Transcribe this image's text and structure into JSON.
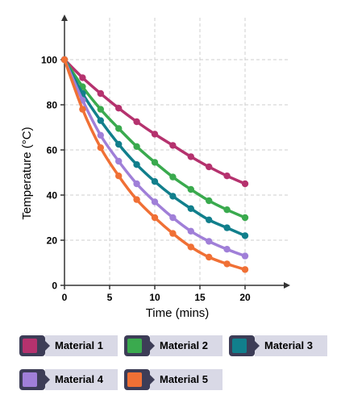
{
  "chart_data": {
    "type": "line",
    "title": "",
    "xlabel": "Time (mins)",
    "ylabel": "Temperature (°C)",
    "xlim": [
      0,
      25
    ],
    "ylim": [
      0,
      100
    ],
    "xticks": [
      0,
      5,
      10,
      15,
      20
    ],
    "yticks": [
      0,
      20,
      40,
      60,
      80,
      100
    ],
    "xtick_labels": [
      "0",
      "5",
      "10",
      "15",
      "20"
    ],
    "ytick_labels": [
      "0",
      "20",
      "40",
      "60",
      "80",
      "100"
    ],
    "grid": true,
    "legend_position": "bottom",
    "x": [
      0,
      2,
      4,
      6,
      8,
      10,
      12,
      14,
      16,
      18,
      20
    ],
    "series": [
      {
        "name": "Material 1",
        "color": "#b5326e",
        "values": [
          100,
          92,
          85,
          78.5,
          72.5,
          67,
          62,
          57,
          52.5,
          48.5,
          45
        ]
      },
      {
        "name": "Material 2",
        "color": "#3aaa4e",
        "values": [
          100,
          88,
          78,
          69.5,
          61.5,
          54.5,
          48,
          42.5,
          37.5,
          33.5,
          30
        ]
      },
      {
        "name": "Material 3",
        "color": "#117f8c",
        "values": [
          100,
          85,
          73,
          62.5,
          53.5,
          46,
          39.5,
          34,
          29,
          25.5,
          22
        ]
      },
      {
        "name": "Material 4",
        "color": "#a07fd8",
        "values": [
          100,
          82,
          66.5,
          55,
          45,
          37,
          30,
          24,
          19.5,
          16,
          13
        ]
      },
      {
        "name": "Material 5",
        "color": "#f07035",
        "values": [
          100,
          78,
          61,
          48.5,
          38,
          30,
          23,
          17,
          12.5,
          9.5,
          7
        ]
      }
    ]
  },
  "legend": {
    "items": [
      {
        "label": "Material 1",
        "color": "#b5326e"
      },
      {
        "label": "Material 2",
        "color": "#3aaa4e"
      },
      {
        "label": "Material 3",
        "color": "#117f8c"
      },
      {
        "label": "Material 4",
        "color": "#a07fd8"
      },
      {
        "label": "Material 5",
        "color": "#f07035"
      }
    ]
  }
}
